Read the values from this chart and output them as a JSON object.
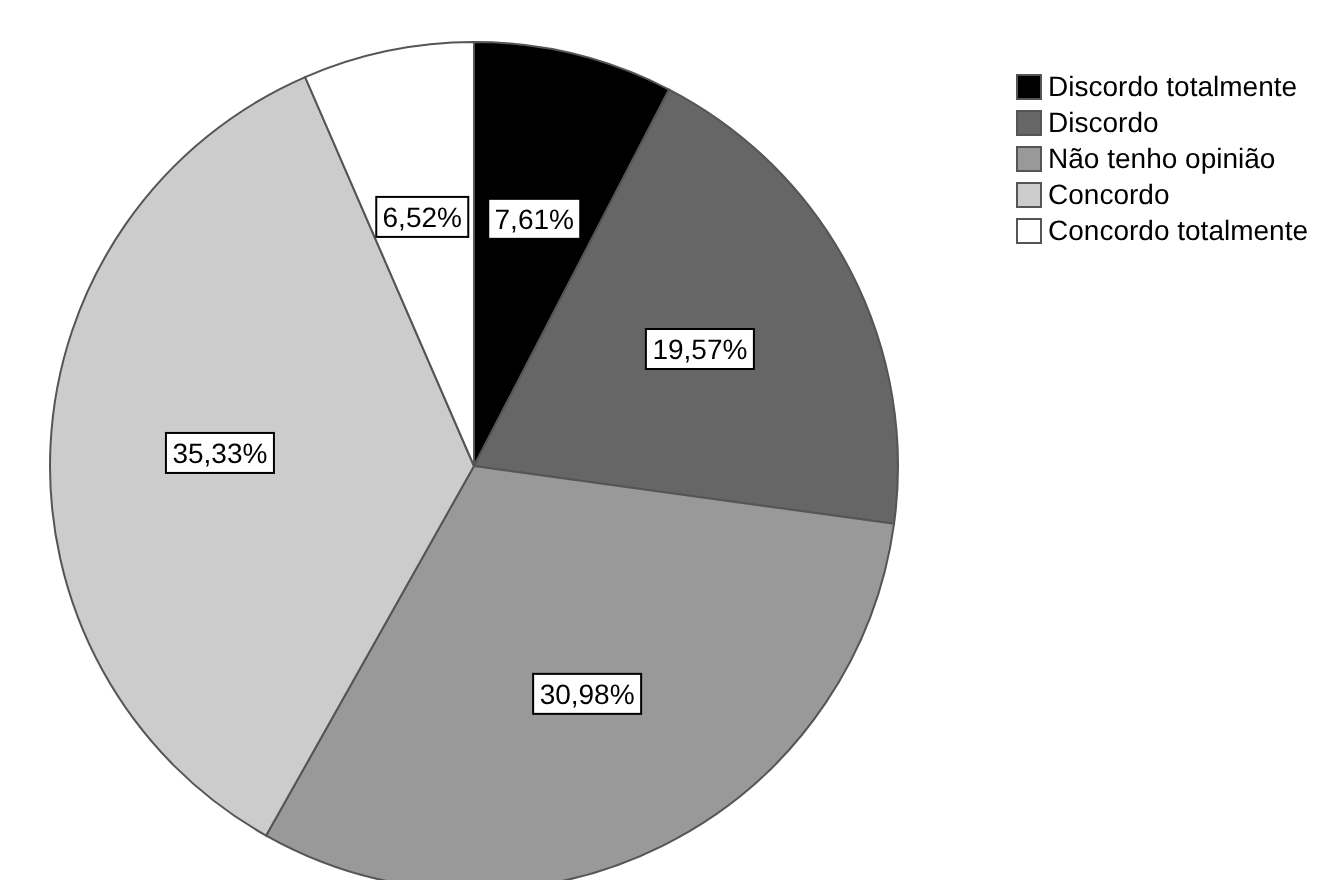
{
  "chart_data": {
    "type": "pie",
    "categories": [
      "Discordo totalmente",
      "Discordo",
      "Não tenho opinião",
      "Concordo",
      "Concordo totalmente"
    ],
    "values": [
      7.61,
      19.57,
      30.98,
      35.33,
      6.52
    ],
    "colors": [
      "#000000",
      "#666666",
      "#999999",
      "#cccccc",
      "#ffffff"
    ],
    "value_labels": [
      "7,61%",
      "19,57%",
      "30,98%",
      "35,33%",
      "6,52%"
    ],
    "legend": "top right"
  }
}
